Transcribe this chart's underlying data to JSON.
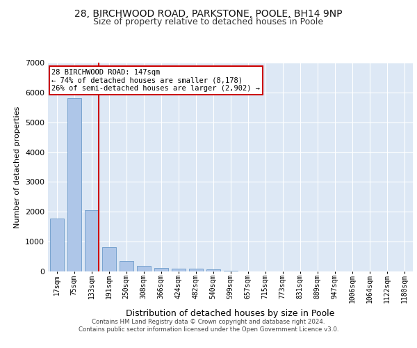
{
  "title": "28, BIRCHWOOD ROAD, PARKSTONE, POOLE, BH14 9NP",
  "subtitle": "Size of property relative to detached houses in Poole",
  "xlabel": "Distribution of detached houses by size in Poole",
  "ylabel": "Number of detached properties",
  "bar_values": [
    1780,
    5800,
    2060,
    820,
    340,
    185,
    115,
    95,
    90,
    80,
    15,
    5,
    3,
    2,
    1,
    1,
    0,
    0,
    0,
    0,
    0
  ],
  "bar_labels": [
    "17sqm",
    "75sqm",
    "133sqm",
    "191sqm",
    "250sqm",
    "308sqm",
    "366sqm",
    "424sqm",
    "482sqm",
    "540sqm",
    "599sqm",
    "657sqm",
    "715sqm",
    "773sqm",
    "831sqm",
    "889sqm",
    "947sqm",
    "1006sqm",
    "1064sqm",
    "1122sqm",
    "1180sqm"
  ],
  "bar_color": "#aec6e8",
  "bar_edge_color": "#5a8fc2",
  "highlight_index": 2,
  "highlight_line_color": "#cc0000",
  "annotation_text": "28 BIRCHWOOD ROAD: 147sqm\n← 74% of detached houses are smaller (8,178)\n26% of semi-detached houses are larger (2,902) →",
  "annotation_box_color": "#ffffff",
  "annotation_box_edge_color": "#cc0000",
  "ylim": [
    0,
    7000
  ],
  "yticks": [
    0,
    1000,
    2000,
    3000,
    4000,
    5000,
    6000,
    7000
  ],
  "background_color": "#dde8f5",
  "grid_color": "#ffffff",
  "footer_line1": "Contains HM Land Registry data © Crown copyright and database right 2024.",
  "footer_line2": "Contains public sector information licensed under the Open Government Licence v3.0.",
  "title_fontsize": 10,
  "subtitle_fontsize": 9,
  "ylabel_fontsize": 8,
  "xlabel_fontsize": 9,
  "ytick_fontsize": 8,
  "xtick_fontsize": 7
}
